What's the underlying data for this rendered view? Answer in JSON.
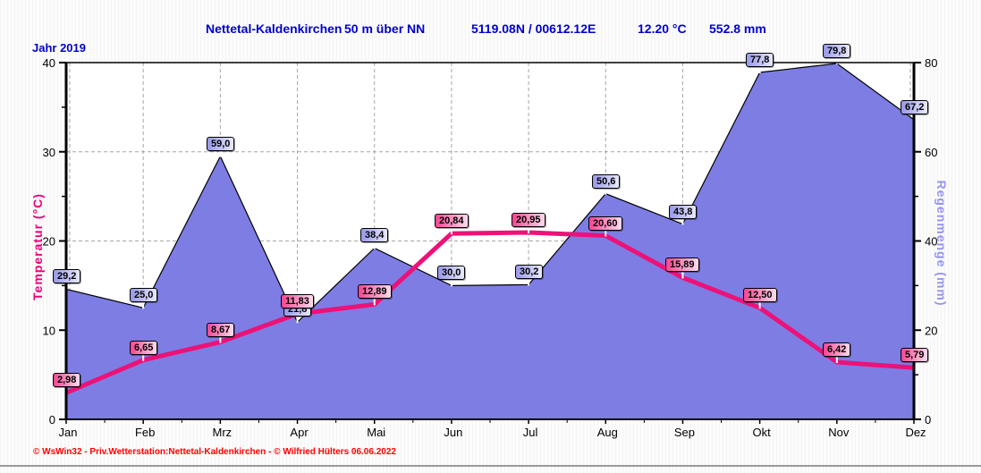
{
  "header": {
    "station": "Nettetal-Kaldenkirchen",
    "altitude": "50 m über NN",
    "coordinates": "5119.08N / 00612.12E",
    "mean_temperature": "12.20 °C",
    "total_rain": "552.8 mm",
    "year_label": "Jahr  2019"
  },
  "footer": {
    "credit": "© WsWin32 - Priv.Wetterstation:Nettetal-Kaldenkirchen - © Wilfried Hülters  06.06.2022"
  },
  "chart_data": {
    "type": "area+line",
    "title": "Nettetal-Kaldenkirchen 50 m über NN 5119.08N / 00612.12E 12.20 °C 552.8 mm",
    "subtitle": "Jahr 2019",
    "categories": [
      "Jan",
      "Feb",
      "Mrz",
      "Apr",
      "Mai",
      "Jun",
      "Jul",
      "Aug",
      "Sep",
      "Okt",
      "Nov",
      "Dez"
    ],
    "series": [
      {
        "name": "Regenmenge",
        "type": "area",
        "unit": "mm",
        "color": "#7d7de4",
        "values": [
          29.2,
          25.0,
          59.0,
          21.8,
          38.4,
          30.0,
          30.2,
          50.6,
          43.8,
          77.8,
          79.8,
          67.2
        ],
        "labels": [
          "29,2",
          "25,0",
          "59,0",
          "21,8",
          "38,4",
          "30,0",
          "30,2",
          "50,6",
          "43,8",
          "77,8",
          "79,8",
          "67,2"
        ]
      },
      {
        "name": "Temperatur",
        "type": "line",
        "unit": "°C",
        "color": "#ee1177",
        "values": [
          2.98,
          6.65,
          8.67,
          11.83,
          12.89,
          20.84,
          20.95,
          20.6,
          15.89,
          12.5,
          6.42,
          5.79
        ],
        "labels": [
          "2,98",
          "6,65",
          "8,67",
          "11,83",
          "12,89",
          "20,84",
          "20,95",
          "20,60",
          "15,89",
          "12,50",
          "6,42",
          "5,79"
        ]
      }
    ],
    "left_axis": {
      "label": "Temperatur  (°C)",
      "ticks": [
        0,
        10,
        20,
        30,
        40
      ],
      "range": [
        0,
        40
      ]
    },
    "right_axis": {
      "label": "Regenmenge  (mm)",
      "ticks": [
        0,
        20,
        40,
        60,
        80
      ],
      "range": [
        0,
        80
      ]
    },
    "grid": true,
    "legend_position": "none"
  }
}
